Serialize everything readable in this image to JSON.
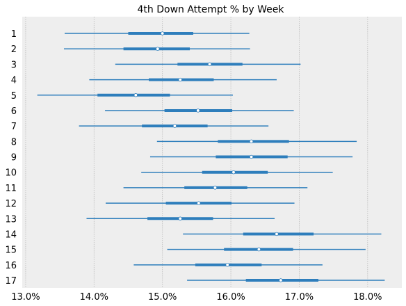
{
  "chart_data": {
    "type": "forest",
    "title": "4th Down Attempt % by Week",
    "xlabel": "",
    "ylabel": "",
    "xlim": [
      12.95,
      18.5
    ],
    "x_ticks": [
      13.0,
      14.0,
      15.0,
      16.0,
      17.0,
      18.0
    ],
    "x_tick_labels": [
      "13.0%",
      "14.0%",
      "15.0%",
      "16.0%",
      "17.0%",
      "18.0%"
    ],
    "grid": "vertical",
    "colors": {
      "line": "#2e7ebc",
      "marker_face": "#ffffff",
      "background": "#eeeeee",
      "grid": "#bbbbbb"
    },
    "rows": [
      {
        "label": "1",
        "low": 13.57,
        "q1": 14.5,
        "median": 15.0,
        "q3": 15.45,
        "high": 16.27
      },
      {
        "label": "2",
        "low": 13.56,
        "q1": 14.43,
        "median": 14.93,
        "q3": 15.4,
        "high": 16.28
      },
      {
        "label": "3",
        "low": 14.31,
        "q1": 15.22,
        "median": 15.69,
        "q3": 16.17,
        "high": 17.02
      },
      {
        "label": "4",
        "low": 13.93,
        "q1": 14.8,
        "median": 15.26,
        "q3": 15.75,
        "high": 16.67
      },
      {
        "label": "5",
        "low": 13.17,
        "q1": 14.05,
        "median": 14.61,
        "q3": 15.11,
        "high": 16.03
      },
      {
        "label": "6",
        "low": 14.16,
        "q1": 15.03,
        "median": 15.52,
        "q3": 16.02,
        "high": 16.92
      },
      {
        "label": "7",
        "low": 13.78,
        "q1": 14.7,
        "median": 15.18,
        "q3": 15.66,
        "high": 16.55
      },
      {
        "label": "8",
        "low": 14.92,
        "q1": 15.81,
        "median": 16.3,
        "q3": 16.85,
        "high": 17.84
      },
      {
        "label": "9",
        "low": 14.82,
        "q1": 15.78,
        "median": 16.3,
        "q3": 16.83,
        "high": 17.78
      },
      {
        "label": "10",
        "low": 14.69,
        "q1": 15.58,
        "median": 16.04,
        "q3": 16.54,
        "high": 17.49
      },
      {
        "label": "11",
        "low": 14.43,
        "q1": 15.32,
        "median": 15.77,
        "q3": 16.24,
        "high": 17.12
      },
      {
        "label": "12",
        "low": 14.17,
        "q1": 15.05,
        "median": 15.53,
        "q3": 16.01,
        "high": 16.93
      },
      {
        "label": "13",
        "low": 13.89,
        "q1": 14.78,
        "median": 15.26,
        "q3": 15.74,
        "high": 16.64
      },
      {
        "label": "14",
        "low": 15.3,
        "q1": 16.18,
        "median": 16.67,
        "q3": 17.21,
        "high": 18.2
      },
      {
        "label": "15",
        "low": 15.07,
        "q1": 15.9,
        "median": 16.41,
        "q3": 16.91,
        "high": 17.97
      },
      {
        "label": "16",
        "low": 14.58,
        "q1": 15.48,
        "median": 15.95,
        "q3": 16.45,
        "high": 17.34
      },
      {
        "label": "17",
        "low": 15.36,
        "q1": 16.22,
        "median": 16.73,
        "q3": 17.28,
        "high": 18.25
      }
    ]
  }
}
